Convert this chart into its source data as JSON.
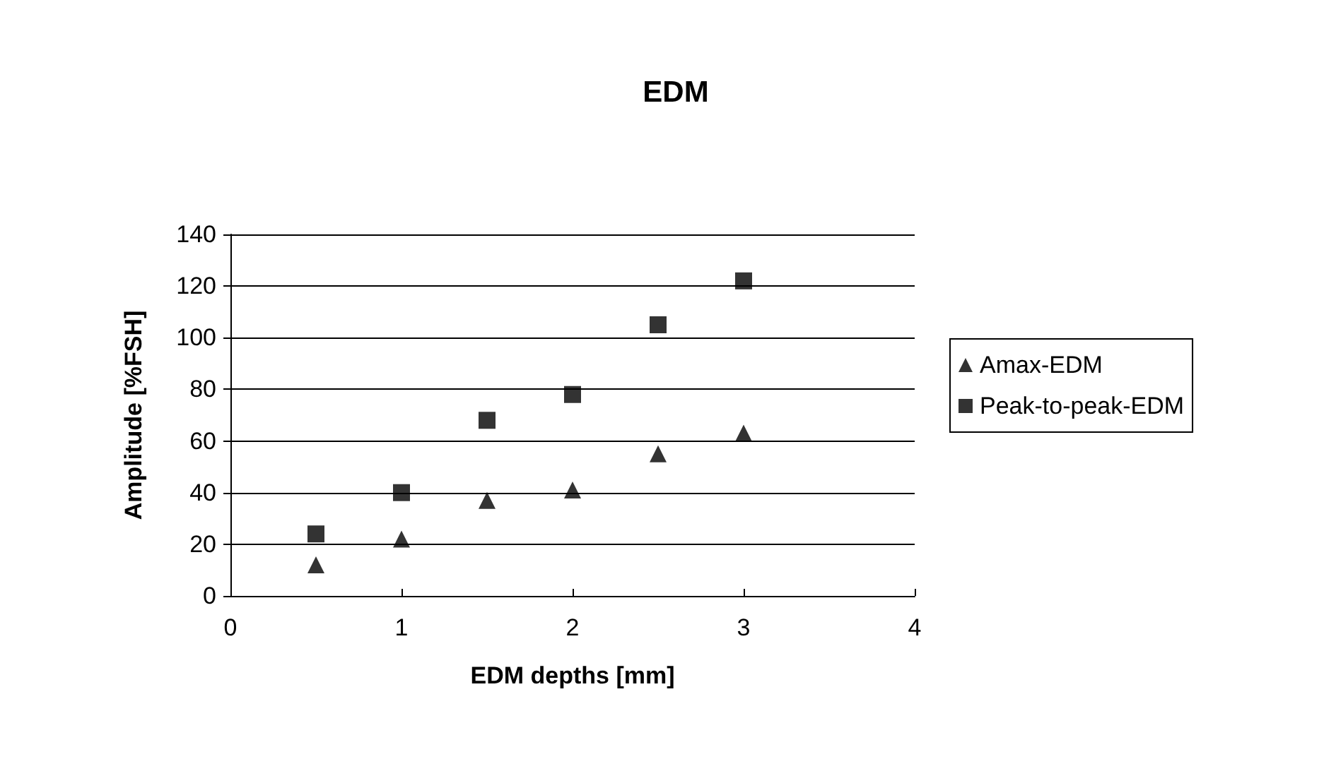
{
  "chart_data": {
    "type": "scatter",
    "title": "EDM",
    "xlabel": "EDM depths [mm]",
    "ylabel": "Amplitude [%FSH]",
    "x": [
      0.5,
      1,
      1.5,
      2,
      2.5,
      3
    ],
    "series": [
      {
        "name": "Amax-EDM",
        "color": "#000000",
        "marker": "triangle",
        "values": [
          12,
          22,
          37,
          41,
          55,
          63
        ]
      },
      {
        "name": "Peak-to-peak-EDM",
        "color": "#000000",
        "marker": "square",
        "values": [
          24,
          40,
          68,
          78,
          105,
          122
        ]
      }
    ],
    "xlim": [
      0,
      4
    ],
    "xticks": [
      0,
      1,
      2,
      3,
      4
    ],
    "ylim": [
      0,
      140
    ],
    "yticks": [
      0,
      20,
      40,
      60,
      80,
      100,
      120,
      140
    ],
    "grid": "y",
    "legend": "right"
  }
}
